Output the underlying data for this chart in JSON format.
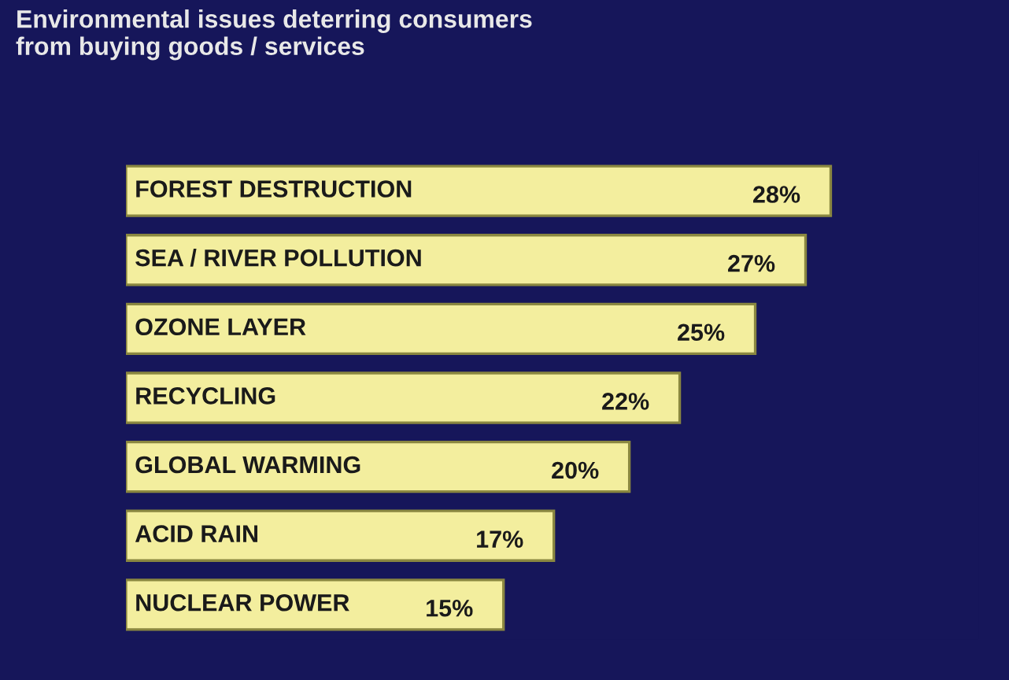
{
  "chart_data": {
    "type": "bar",
    "orientation": "horizontal",
    "title": "Environmental issues deterring consumers\nfrom buying goods / services",
    "categories": [
      "FOREST DESTRUCTION",
      "SEA / RIVER POLLUTION",
      "OZONE LAYER",
      "RECYCLING",
      "GLOBAL WARMING",
      "ACID RAIN",
      "NUCLEAR POWER"
    ],
    "values": [
      28,
      27,
      25,
      22,
      20,
      17,
      15
    ],
    "value_labels": [
      "28%",
      "27%",
      "25%",
      "22%",
      "20%",
      "17%",
      "15%"
    ],
    "color": "#f3ee9e"
  }
}
